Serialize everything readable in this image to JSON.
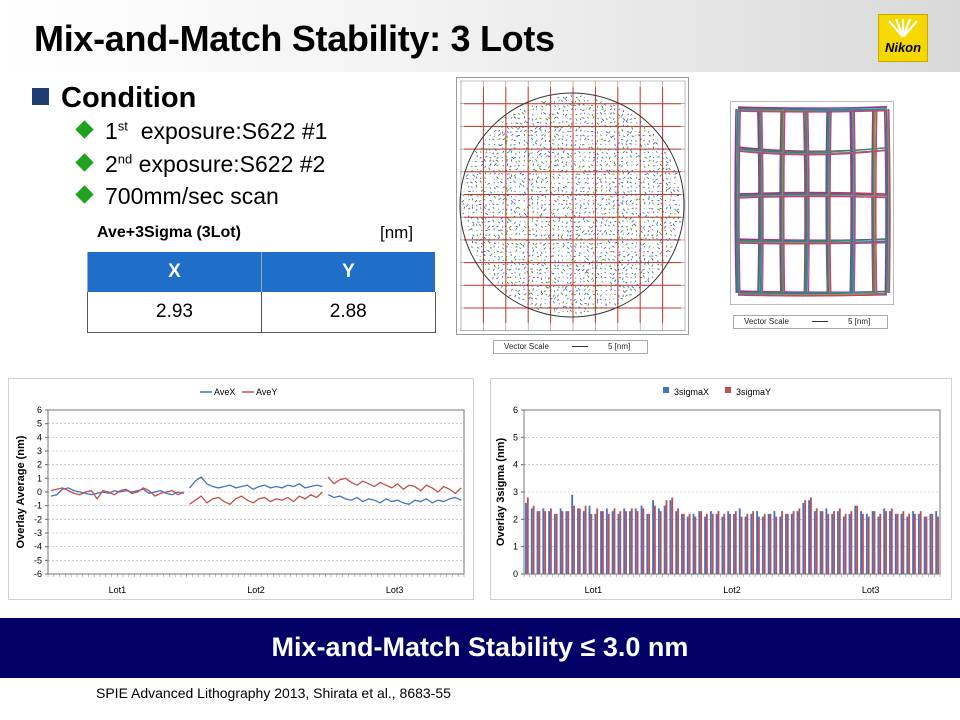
{
  "title": "Mix-and-Match Stability: 3 Lots",
  "logo_text": "Nikon",
  "condition": {
    "heading": "Condition",
    "items": [
      {
        "ord": "1",
        "sup": "st",
        "text": "  exposure:S622 #1"
      },
      {
        "ord": "2",
        "sup": "nd",
        "text": " exposure:S622 #2"
      },
      {
        "ord": "",
        "sup": "",
        "text": "700mm/sec scan"
      }
    ]
  },
  "table": {
    "title": "Ave+3Sigma (3Lot)",
    "unit": "[nm]",
    "headers": [
      "X",
      "Y"
    ],
    "values": [
      "2.93",
      "2.88"
    ]
  },
  "maps": {
    "wafer_scale_label": "Vector Scale",
    "wafer_scale_value": "5 [nm]",
    "shot_scale_label": "Vector Scale",
    "shot_scale_value": "5 [nm]"
  },
  "chart_data": [
    {
      "type": "line",
      "ylabel": "Overlay Average (nm)",
      "ylim": [
        -6,
        6
      ],
      "yticks": [
        6,
        5,
        4,
        3,
        2,
        1,
        0,
        -1,
        -2,
        -3,
        -4,
        -5,
        -6
      ],
      "groups": [
        "Lot1",
        "Lot2",
        "Lot3"
      ],
      "legend": "top",
      "grid": true,
      "series": [
        {
          "name": "AveX",
          "color": "#4472c4",
          "lots": [
            [
              -0.3,
              -0.2,
              0.2,
              0.3,
              0.1,
              0.0,
              -0.1,
              -0.2,
              -0.1,
              0.0,
              -0.1,
              0.1,
              0.0,
              0.1,
              0.0,
              0.1,
              0.2,
              -0.1,
              0.0,
              0.1,
              -0.1,
              -0.2,
              0.0,
              -0.1
            ],
            [
              0.3,
              0.8,
              1.1,
              0.6,
              0.4,
              0.3,
              0.4,
              0.5,
              0.3,
              0.4,
              0.5,
              0.2,
              0.4,
              0.5,
              0.3,
              0.4,
              0.3,
              0.5,
              0.4,
              0.6,
              0.3,
              0.4,
              0.5,
              0.4
            ],
            [
              -0.2,
              -0.4,
              -0.3,
              -0.5,
              -0.6,
              -0.4,
              -0.7,
              -0.5,
              -0.6,
              -0.8,
              -0.5,
              -0.7,
              -0.6,
              -0.8,
              -0.9,
              -0.6,
              -0.7,
              -0.5,
              -0.8,
              -0.6,
              -0.7,
              -0.5,
              -0.4,
              -0.6
            ]
          ]
        },
        {
          "name": "AveY",
          "color": "#c0504d",
          "lots": [
            [
              0.1,
              0.2,
              0.3,
              0.1,
              -0.1,
              -0.2,
              0.0,
              0.1,
              -0.5,
              0.1,
              0.0,
              -0.2,
              0.1,
              0.2,
              -0.1,
              0.0,
              0.3,
              0.1,
              -0.3,
              -0.1,
              0.0,
              0.1,
              -0.2,
              0.0
            ],
            [
              -0.9,
              -0.6,
              -0.3,
              -0.8,
              -0.5,
              -0.4,
              -0.7,
              -0.9,
              -0.5,
              -0.3,
              -0.6,
              -0.8,
              -0.5,
              -0.4,
              -0.7,
              -0.5,
              -0.6,
              -0.4,
              -0.7,
              -0.3,
              -0.5,
              -0.2,
              -0.4,
              0.0
            ],
            [
              1.1,
              0.6,
              0.9,
              1.0,
              0.7,
              0.5,
              0.8,
              0.6,
              0.4,
              0.7,
              0.5,
              0.3,
              0.6,
              0.2,
              0.5,
              0.4,
              0.1,
              0.5,
              0.3,
              0.0,
              0.4,
              0.2,
              -0.1,
              0.3
            ]
          ]
        }
      ]
    },
    {
      "type": "bar",
      "ylabel": "Overlay 3sigma (nm)",
      "ylim": [
        0,
        6
      ],
      "yticks": [
        6,
        5,
        4,
        3,
        2,
        1,
        0
      ],
      "groups": [
        "Lot1",
        "Lot2",
        "Lot3"
      ],
      "legend": "top",
      "grid": true,
      "series": [
        {
          "name": "3sigmaX",
          "color": "#4472c4",
          "lots": [
            [
              2.6,
              2.4,
              2.3,
              2.4,
              2.3,
              2.2,
              2.4,
              2.3,
              2.9,
              2.4,
              2.3,
              2.5,
              2.2,
              2.3,
              2.4,
              2.3,
              2.2,
              2.4,
              2.3,
              2.4,
              2.5,
              2.2,
              2.7,
              2.4
            ],
            [
              2.5,
              2.7,
              2.3,
              2.2,
              2.1,
              2.2,
              2.3,
              2.1,
              2.3,
              2.2,
              2.1,
              2.3,
              2.2,
              2.4,
              2.1,
              2.2,
              2.3,
              2.1,
              2.2,
              2.3,
              2.1,
              2.2,
              2.2,
              2.3
            ],
            [
              2.6,
              2.7,
              2.3,
              2.3,
              2.4,
              2.2,
              2.3,
              2.1,
              2.2,
              2.5,
              2.3,
              2.2,
              2.3,
              2.1,
              2.4,
              2.3,
              2.2,
              2.2,
              2.1,
              2.3,
              2.2,
              2.1,
              2.2,
              2.3
            ]
          ]
        },
        {
          "name": "3sigmaY",
          "color": "#c0504d",
          "lots": [
            [
              2.8,
              2.5,
              2.3,
              2.3,
              2.4,
              2.2,
              2.3,
              2.3,
              2.5,
              2.4,
              2.5,
              2.2,
              2.4,
              2.3,
              2.2,
              2.4,
              2.3,
              2.3,
              2.4,
              2.3,
              2.4,
              2.2,
              2.5,
              2.3
            ],
            [
              2.7,
              2.8,
              2.4,
              2.2,
              2.2,
              2.1,
              2.3,
              2.2,
              2.2,
              2.3,
              2.2,
              2.2,
              2.3,
              2.1,
              2.2,
              2.3,
              2.1,
              2.2,
              2.2,
              2.1,
              2.3,
              2.2,
              2.3,
              2.4
            ],
            [
              2.7,
              2.8,
              2.4,
              2.3,
              2.2,
              2.3,
              2.4,
              2.2,
              2.3,
              2.5,
              2.2,
              2.1,
              2.3,
              2.2,
              2.3,
              2.4,
              2.2,
              2.3,
              2.2,
              2.2,
              2.3,
              2.1,
              2.2,
              2.1
            ]
          ]
        }
      ]
    }
  ],
  "footer": "Mix-and-Match Stability ≤ 3.0 nm",
  "citation": "SPIE Advanced Lithography 2013, Shirata et al., 8683-55"
}
